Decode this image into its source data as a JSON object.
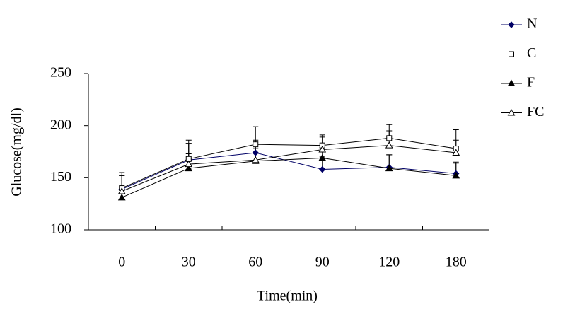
{
  "chart_data": {
    "type": "line",
    "ylabel": "Glucose(mg/dl)",
    "xlabel": "Time(min)",
    "categories": [
      "0",
      "30",
      "60",
      "90",
      "120",
      "180"
    ],
    "ylim": [
      100,
      250
    ],
    "yticks": [
      100,
      150,
      200,
      250
    ],
    "grid": false,
    "legend": "top-right",
    "series": [
      {
        "name": "N",
        "color": "#000066",
        "marker": "diamond",
        "values": [
          139,
          167,
          174,
          158,
          160,
          154
        ],
        "errors": [
          13,
          16,
          12,
          12,
          12,
          10
        ]
      },
      {
        "name": "C",
        "color": "#000000",
        "marker": "square-open",
        "values": [
          140,
          168,
          182,
          181,
          188,
          178
        ],
        "errors": [
          15,
          18,
          17,
          10,
          13,
          18
        ]
      },
      {
        "name": "F",
        "color": "#000000",
        "marker": "triangle",
        "values": [
          131,
          159,
          166,
          169,
          159,
          152
        ],
        "errors": [
          12,
          14,
          12,
          10,
          13,
          13
        ]
      },
      {
        "name": "FC",
        "color": "#000000",
        "marker": "triangle-open",
        "values": [
          137,
          163,
          167,
          177,
          181,
          174
        ],
        "errors": [
          15,
          20,
          15,
          12,
          14,
          12
        ]
      }
    ]
  }
}
